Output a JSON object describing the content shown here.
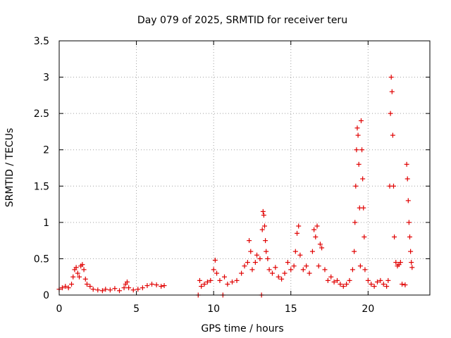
{
  "chart_data": {
    "type": "scatter",
    "title": "Day 079 of 2025, SRMTID for receiver teru",
    "xlabel": "GPS time / hours",
    "ylabel": "SRMTID / TECUs",
    "xlim": [
      0,
      24
    ],
    "ylim": [
      0,
      3.5
    ],
    "xticks": [
      0,
      5,
      10,
      15,
      20
    ],
    "xtick_labels": [
      "0",
      "5",
      "10",
      "15",
      "20"
    ],
    "yticks": [
      0,
      0.5,
      1,
      1.5,
      2,
      2.5,
      3,
      3.5
    ],
    "ytick_labels": [
      "0",
      "0.5",
      "1",
      "1.5",
      "2",
      "2.5",
      "3",
      "3.5"
    ],
    "grid": true,
    "marker": "+",
    "color": "#e00000",
    "series": [
      {
        "name": "SRMTID",
        "points": [
          [
            0.0,
            0.08
          ],
          [
            0.2,
            0.1
          ],
          [
            0.4,
            0.12
          ],
          [
            0.6,
            0.1
          ],
          [
            0.8,
            0.15
          ],
          [
            0.9,
            0.25
          ],
          [
            1.0,
            0.35
          ],
          [
            1.1,
            0.38
          ],
          [
            1.2,
            0.3
          ],
          [
            1.3,
            0.25
          ],
          [
            1.4,
            0.4
          ],
          [
            1.5,
            0.42
          ],
          [
            1.6,
            0.35
          ],
          [
            1.7,
            0.22
          ],
          [
            1.8,
            0.15
          ],
          [
            2.0,
            0.12
          ],
          [
            2.2,
            0.08
          ],
          [
            2.5,
            0.07
          ],
          [
            2.8,
            0.06
          ],
          [
            3.0,
            0.08
          ],
          [
            3.3,
            0.07
          ],
          [
            3.6,
            0.09
          ],
          [
            3.9,
            0.06
          ],
          [
            4.2,
            0.1
          ],
          [
            4.3,
            0.15
          ],
          [
            4.4,
            0.18
          ],
          [
            4.5,
            0.1
          ],
          [
            4.8,
            0.07
          ],
          [
            5.1,
            0.08
          ],
          [
            5.4,
            0.1
          ],
          [
            5.7,
            0.13
          ],
          [
            6.0,
            0.15
          ],
          [
            6.3,
            0.14
          ],
          [
            6.6,
            0.12
          ],
          [
            6.8,
            0.13
          ],
          [
            9.0,
            0.0
          ],
          [
            9.1,
            0.2
          ],
          [
            9.2,
            0.12
          ],
          [
            9.4,
            0.15
          ],
          [
            9.6,
            0.18
          ],
          [
            9.8,
            0.2
          ],
          [
            10.0,
            0.35
          ],
          [
            10.1,
            0.48
          ],
          [
            10.2,
            0.3
          ],
          [
            10.4,
            0.2
          ],
          [
            10.6,
            0.0
          ],
          [
            10.7,
            0.25
          ],
          [
            10.9,
            0.15
          ],
          [
            11.2,
            0.18
          ],
          [
            11.5,
            0.2
          ],
          [
            11.8,
            0.3
          ],
          [
            12.0,
            0.4
          ],
          [
            12.2,
            0.45
          ],
          [
            12.3,
            0.75
          ],
          [
            12.4,
            0.6
          ],
          [
            12.5,
            0.35
          ],
          [
            12.7,
            0.45
          ],
          [
            12.8,
            0.55
          ],
          [
            13.0,
            0.5
          ],
          [
            13.1,
            0.0
          ],
          [
            13.15,
            0.9
          ],
          [
            13.2,
            1.15
          ],
          [
            13.25,
            1.1
          ],
          [
            13.3,
            0.95
          ],
          [
            13.35,
            0.75
          ],
          [
            13.4,
            0.6
          ],
          [
            13.5,
            0.5
          ],
          [
            13.6,
            0.35
          ],
          [
            13.8,
            0.3
          ],
          [
            14.0,
            0.38
          ],
          [
            14.2,
            0.25
          ],
          [
            14.4,
            0.22
          ],
          [
            14.6,
            0.3
          ],
          [
            14.8,
            0.45
          ],
          [
            15.0,
            0.35
          ],
          [
            15.2,
            0.4
          ],
          [
            15.3,
            0.6
          ],
          [
            15.4,
            0.85
          ],
          [
            15.5,
            0.95
          ],
          [
            15.6,
            0.55
          ],
          [
            15.8,
            0.35
          ],
          [
            16.0,
            0.4
          ],
          [
            16.2,
            0.3
          ],
          [
            16.4,
            0.6
          ],
          [
            16.5,
            0.9
          ],
          [
            16.6,
            0.8
          ],
          [
            16.7,
            0.95
          ],
          [
            16.8,
            0.4
          ],
          [
            16.9,
            0.7
          ],
          [
            17.0,
            0.65
          ],
          [
            17.2,
            0.35
          ],
          [
            17.4,
            0.2
          ],
          [
            17.6,
            0.25
          ],
          [
            17.8,
            0.18
          ],
          [
            18.0,
            0.2
          ],
          [
            18.2,
            0.15
          ],
          [
            18.4,
            0.12
          ],
          [
            18.6,
            0.15
          ],
          [
            18.8,
            0.2
          ],
          [
            19.0,
            0.35
          ],
          [
            19.1,
            0.6
          ],
          [
            19.15,
            1.0
          ],
          [
            19.2,
            1.5
          ],
          [
            19.25,
            2.0
          ],
          [
            19.3,
            2.3
          ],
          [
            19.35,
            2.2
          ],
          [
            19.4,
            1.8
          ],
          [
            19.45,
            1.2
          ],
          [
            19.5,
            0.4
          ],
          [
            19.55,
            2.4
          ],
          [
            19.6,
            2.0
          ],
          [
            19.65,
            1.6
          ],
          [
            19.7,
            1.2
          ],
          [
            19.75,
            0.8
          ],
          [
            19.8,
            0.35
          ],
          [
            20.0,
            0.2
          ],
          [
            20.2,
            0.15
          ],
          [
            20.4,
            0.12
          ],
          [
            20.6,
            0.18
          ],
          [
            20.8,
            0.2
          ],
          [
            21.0,
            0.15
          ],
          [
            21.2,
            0.12
          ],
          [
            21.3,
            0.2
          ],
          [
            21.4,
            1.5
          ],
          [
            21.45,
            2.5
          ],
          [
            21.5,
            3.0
          ],
          [
            21.55,
            2.8
          ],
          [
            21.6,
            2.2
          ],
          [
            21.65,
            1.5
          ],
          [
            21.7,
            0.8
          ],
          [
            21.8,
            0.45
          ],
          [
            21.9,
            0.4
          ],
          [
            22.0,
            0.42
          ],
          [
            22.1,
            0.45
          ],
          [
            22.2,
            0.15
          ],
          [
            22.4,
            0.14
          ],
          [
            22.5,
            1.8
          ],
          [
            22.55,
            1.6
          ],
          [
            22.6,
            1.3
          ],
          [
            22.65,
            1.0
          ],
          [
            22.7,
            0.8
          ],
          [
            22.75,
            0.6
          ],
          [
            22.8,
            0.45
          ],
          [
            22.85,
            0.38
          ]
        ]
      }
    ]
  }
}
